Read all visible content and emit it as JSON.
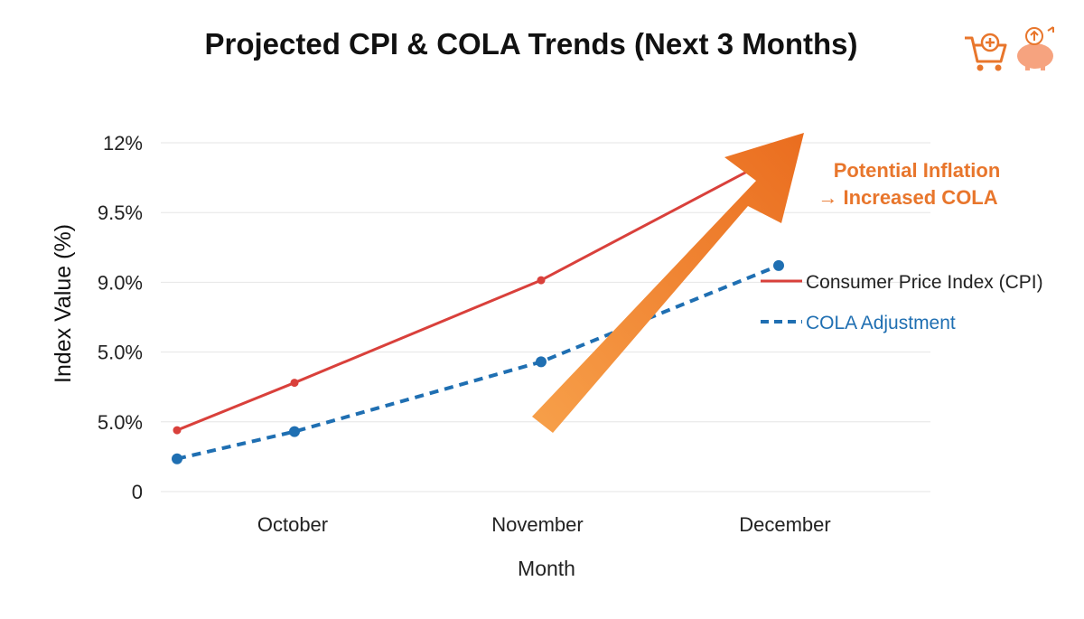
{
  "chart_data": {
    "type": "line",
    "title": "Projected CPI & COLA Trends (Next 3 Months)",
    "xlabel": "Month",
    "ylabel": "Index Value (%)",
    "categories": [
      "October",
      "November",
      "December"
    ],
    "y_tick_labels": [
      "0",
      "5.0%",
      "5.0%",
      "9.0%",
      "9.5%",
      "12%"
    ],
    "grid": true,
    "series": [
      {
        "name": "Consumer Price Index (CPI)",
        "color": "#d9403b",
        "style": "solid",
        "points": [
          {
            "x": "Start",
            "y": 0.88
          },
          {
            "x": "October",
            "y": 1.56
          },
          {
            "x": "November",
            "y": 3.03
          },
          {
            "x": "End",
            "y": 4.58
          }
        ]
      },
      {
        "name": "COLA Adjustment",
        "color": "#1f6fb2",
        "style": "dashed",
        "points": [
          {
            "x": "Start",
            "y": 0.47
          },
          {
            "x": "October",
            "y": 0.86
          },
          {
            "x": "November",
            "y": 1.86
          },
          {
            "x": "December",
            "y": 3.24
          }
        ]
      }
    ],
    "legend_position": "right",
    "annotation": {
      "line1": "Potential Inflation",
      "line2": "→ Increased COLA",
      "color": "#e8762c"
    },
    "icons": [
      "shopping-cart-icon",
      "piggy-bank-icon"
    ]
  }
}
